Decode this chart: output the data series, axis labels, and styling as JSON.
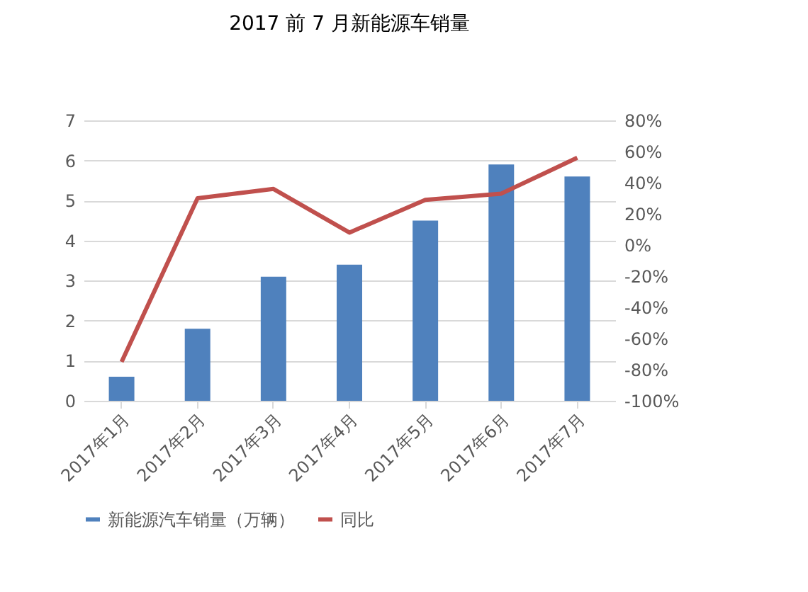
{
  "chart_data": {
    "type": "bar",
    "title": "2017  前 7 月新能源车销量",
    "categories": [
      "2017年1月",
      "2017年2月",
      "2017年3月",
      "2017年4月",
      "2017年5月",
      "2017年6月",
      "2017年7月"
    ],
    "series": [
      {
        "name": "新能源汽车销量（万辆）",
        "color": "#4f81bd",
        "values": [
          0.6,
          1.8,
          3.1,
          3.4,
          4.5,
          5.9,
          5.6
        ]
      },
      {
        "name": "同比",
        "type": "line",
        "axis": "y2",
        "color": "#c0504d",
        "values": [
          -75,
          30,
          36,
          8,
          29,
          33,
          56
        ]
      }
    ],
    "ylim": [
      0,
      7
    ],
    "yticks": [
      0,
      1,
      2,
      3,
      4,
      5,
      6,
      7
    ],
    "y2lim": [
      -100,
      80
    ],
    "y2ticks": [
      {
        "value": -100,
        "label": "-100%"
      },
      {
        "value": -80,
        "label": "-80%"
      },
      {
        "value": -60,
        "label": "-60%"
      },
      {
        "value": -40,
        "label": "-40%"
      },
      {
        "value": -20,
        "label": "-20%"
      },
      {
        "value": 0,
        "label": "0%"
      },
      {
        "value": 20,
        "label": "20%"
      },
      {
        "value": 40,
        "label": "40%"
      },
      {
        "value": 60,
        "label": "60%"
      },
      {
        "value": 80,
        "label": "80%"
      }
    ],
    "grid": "y",
    "legend": "bottom"
  }
}
